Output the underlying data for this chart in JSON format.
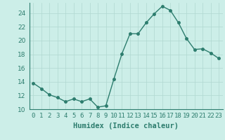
{
  "x": [
    0,
    1,
    2,
    3,
    4,
    5,
    6,
    7,
    8,
    9,
    10,
    11,
    12,
    13,
    14,
    15,
    16,
    17,
    18,
    19,
    20,
    21,
    22,
    23
  ],
  "y": [
    13.8,
    13.0,
    12.1,
    11.7,
    11.1,
    11.5,
    11.1,
    11.5,
    10.3,
    10.5,
    14.4,
    18.1,
    21.0,
    21.0,
    22.6,
    23.9,
    25.0,
    24.4,
    22.6,
    20.3,
    18.7,
    18.8,
    18.2,
    17.4
  ],
  "line_color": "#2d7d6e",
  "marker": "o",
  "markersize": 2.5,
  "linewidth": 1.0,
  "bg_color": "#cceee8",
  "grid_color": "#b0d8d0",
  "xlabel": "Humidex (Indice chaleur)",
  "xlim": [
    -0.5,
    23.5
  ],
  "ylim": [
    10,
    25.5
  ],
  "yticks": [
    10,
    12,
    14,
    16,
    18,
    20,
    22,
    24
  ],
  "xtick_labels": [
    "0",
    "1",
    "2",
    "3",
    "4",
    "5",
    "6",
    "7",
    "8",
    "9",
    "10",
    "11",
    "12",
    "13",
    "14",
    "15",
    "16",
    "17",
    "18",
    "19",
    "20",
    "21",
    "22",
    "23"
  ],
  "xlabel_fontsize": 7.5,
  "tick_fontsize": 6.5
}
